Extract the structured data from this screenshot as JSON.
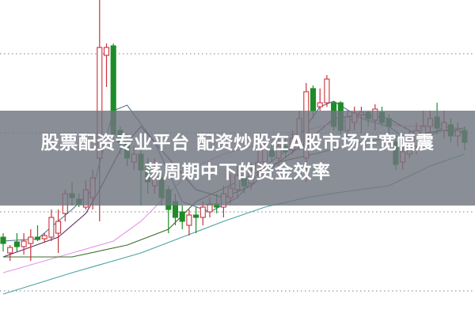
{
  "headline": {
    "line1": "股票配资专业平台 配资炒股在A股市场在宽幅震",
    "line2": "荡周期中下的资金效率"
  },
  "colors": {
    "up": "#c8323c",
    "down": "#1e8c28",
    "grid": "#999999",
    "banner": "#70757f"
  },
  "chart_data": {
    "type": "candlestick",
    "title": "",
    "xlabel": "",
    "ylabel": "",
    "grid": "horizontal dotted",
    "legend": "none",
    "note_units": "relative price level (no axis labels shown)",
    "ylim": [
      0,
      400
    ],
    "gridlines": [
      32,
      132,
      232,
      332
    ],
    "candles": [
      [
        100,
        92,
        105,
        82
      ],
      [
        80,
        87,
        90,
        70
      ],
      [
        94,
        88,
        105,
        82
      ],
      [
        88,
        95,
        105,
        78
      ],
      [
        92,
        100,
        110,
        70
      ],
      [
        100,
        97,
        115,
        95
      ],
      [
        98,
        102,
        105,
        93
      ],
      [
        100,
        125,
        135,
        95
      ],
      [
        105,
        120,
        135,
        80
      ],
      [
        130,
        155,
        160,
        120
      ],
      [
        155,
        150,
        170,
        140
      ],
      [
        148,
        142,
        155,
        138
      ],
      [
        138,
        160,
        172,
        135
      ],
      [
        150,
        175,
        185,
        135
      ],
      [
        200,
        340,
        400,
        120
      ],
      [
        330,
        340,
        345,
        290
      ],
      [
        342,
        230,
        345,
        225
      ],
      [
        235,
        220,
        240,
        205
      ],
      [
        222,
        200,
        230,
        190
      ],
      [
        195,
        205,
        215,
        185
      ],
      [
        205,
        185,
        215,
        140
      ],
      [
        190,
        170,
        200,
        155
      ],
      [
        165,
        180,
        200,
        155
      ],
      [
        175,
        150,
        185,
        140
      ],
      [
        160,
        135,
        165,
        105
      ],
      [
        145,
        125,
        155,
        115
      ],
      [
        132,
        120,
        140,
        110
      ],
      [
        115,
        128,
        135,
        102
      ],
      [
        128,
        125,
        138,
        105
      ],
      [
        125,
        138,
        145,
        115
      ],
      [
        132,
        142,
        150,
        125
      ],
      [
        142,
        138,
        155,
        130
      ],
      [
        138,
        155,
        165,
        125
      ],
      [
        150,
        162,
        180,
        142
      ],
      [
        160,
        178,
        190,
        150
      ],
      [
        175,
        165,
        185,
        155
      ],
      [
        168,
        185,
        195,
        160
      ],
      [
        185,
        195,
        210,
        175
      ],
      [
        195,
        212,
        220,
        185
      ],
      [
        210,
        202,
        220,
        195
      ],
      [
        200,
        215,
        230,
        190
      ],
      [
        215,
        208,
        225,
        200
      ],
      [
        210,
        225,
        235,
        205
      ],
      [
        220,
        250,
        260,
        210
      ],
      [
        200,
        284,
        295,
        170
      ],
      [
        288,
        260,
        292,
        250
      ],
      [
        265,
        270,
        288,
        260
      ],
      [
        270,
        300,
        305,
        265
      ],
      [
        270,
        240,
        272,
        235
      ],
      [
        270,
        235,
        272,
        230
      ],
      [
        235,
        252,
        260,
        225
      ],
      [
        245,
        257,
        265,
        235
      ],
      [
        255,
        258,
        265,
        232
      ],
      [
        258,
        250,
        260,
        240
      ],
      [
        248,
        262,
        268,
        235
      ],
      [
        258,
        245,
        265,
        240
      ],
      [
        250,
        240,
        255,
        225
      ],
      [
        220,
        192,
        230,
        185
      ],
      [
        195,
        208,
        215,
        185
      ],
      [
        205,
        220,
        235,
        200
      ],
      [
        215,
        235,
        245,
        205
      ],
      [
        225,
        240,
        260,
        215
      ],
      [
        240,
        250,
        260,
        225
      ],
      [
        252,
        238,
        270,
        230
      ],
      [
        235,
        245,
        260,
        225
      ],
      [
        242,
        228,
        250,
        220
      ],
      [
        228,
        235,
        245,
        215
      ],
      [
        235,
        220,
        240,
        210
      ]
    ],
    "candle_format": [
      "open",
      "close",
      "high",
      "low"
    ],
    "moving_averages": [
      {
        "color": "#52708e",
        "points": [
          [
            0,
            95
          ],
          [
            5,
            98
          ],
          [
            10,
            135
          ],
          [
            13,
            160
          ],
          [
            16,
            260
          ],
          [
            18,
            267
          ],
          [
            22,
            220
          ],
          [
            26,
            145
          ],
          [
            30,
            132
          ],
          [
            34,
            150
          ],
          [
            38,
            190
          ],
          [
            42,
            215
          ],
          [
            44,
            240
          ],
          [
            46,
            265
          ],
          [
            48,
            272
          ],
          [
            52,
            250
          ],
          [
            56,
            240
          ],
          [
            60,
            215
          ],
          [
            64,
            240
          ],
          [
            67,
            232
          ]
        ]
      },
      {
        "color": "#5e2c5e",
        "points": [
          [
            0,
            75
          ],
          [
            8,
            100
          ],
          [
            12,
            130
          ],
          [
            14,
            160
          ],
          [
            17,
            210
          ],
          [
            20,
            240
          ],
          [
            24,
            200
          ],
          [
            28,
            160
          ],
          [
            32,
            150
          ],
          [
            36,
            165
          ],
          [
            40,
            195
          ],
          [
            44,
            220
          ],
          [
            48,
            250
          ],
          [
            52,
            255
          ],
          [
            56,
            250
          ],
          [
            60,
            230
          ],
          [
            64,
            235
          ],
          [
            67,
            232
          ]
        ]
      },
      {
        "color": "#e394e3",
        "points": [
          [
            0,
            55
          ],
          [
            10,
            80
          ],
          [
            16,
            95
          ],
          [
            20,
            120
          ],
          [
            24,
            155
          ],
          [
            28,
            190
          ],
          [
            32,
            205
          ],
          [
            36,
            215
          ],
          [
            40,
            225
          ],
          [
            46,
            240
          ],
          [
            52,
            252
          ],
          [
            58,
            240
          ],
          [
            64,
            242
          ],
          [
            67,
            235
          ]
        ]
      },
      {
        "color": "#3d6b2c",
        "points": [
          [
            0,
            75
          ],
          [
            10,
            75
          ],
          [
            18,
            90
          ],
          [
            24,
            110
          ],
          [
            28,
            145
          ],
          [
            34,
            170
          ],
          [
            40,
            195
          ],
          [
            46,
            207
          ],
          [
            52,
            220
          ],
          [
            58,
            228
          ],
          [
            64,
            235
          ],
          [
            67,
            238
          ]
        ]
      },
      {
        "color": "#4aa3a3",
        "points": [
          [
            0,
            28
          ],
          [
            10,
            55
          ],
          [
            20,
            80
          ],
          [
            26,
            100
          ],
          [
            32,
            120
          ],
          [
            38,
            138
          ],
          [
            44,
            150
          ],
          [
            50,
            158
          ],
          [
            56,
            165
          ],
          [
            62,
            190
          ],
          [
            67,
            205
          ]
        ]
      }
    ]
  }
}
